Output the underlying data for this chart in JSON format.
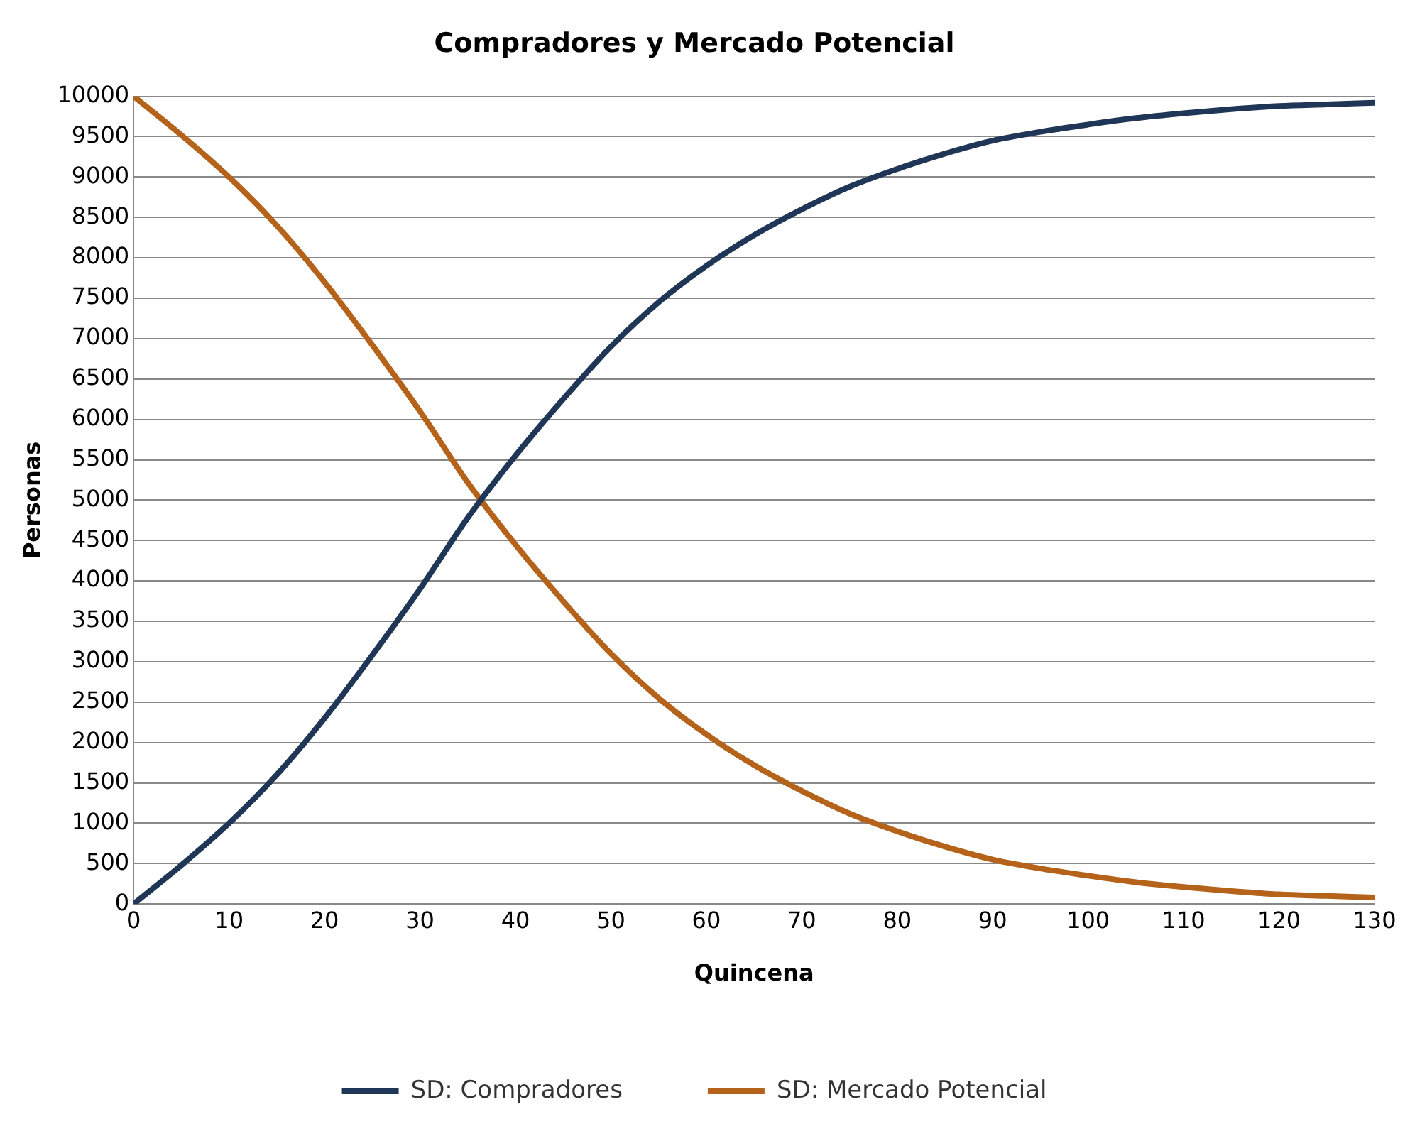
{
  "chart_data": {
    "type": "line",
    "title": "Compradores y Mercado Potencial",
    "xlabel": "Quincena",
    "ylabel": "Personas",
    "x": [
      0,
      5,
      10,
      15,
      20,
      25,
      30,
      35,
      40,
      45,
      50,
      55,
      60,
      65,
      70,
      75,
      80,
      85,
      90,
      95,
      100,
      105,
      110,
      115,
      120,
      125,
      130
    ],
    "series": [
      {
        "name": "SD: Compradores",
        "color": "#1f3657",
        "values": [
          0,
          480,
          1000,
          1600,
          2300,
          3080,
          3900,
          4780,
          5550,
          6250,
          6900,
          7450,
          7900,
          8280,
          8600,
          8880,
          9100,
          9290,
          9450,
          9560,
          9650,
          9730,
          9790,
          9840,
          9880,
          9900,
          9920
        ]
      },
      {
        "name": "SD: Mercado Potencial",
        "color": "#b5631a",
        "values": [
          10000,
          9520,
          9000,
          8400,
          7700,
          6920,
          6100,
          5220,
          4450,
          3750,
          3100,
          2550,
          2100,
          1720,
          1400,
          1120,
          900,
          710,
          550,
          440,
          350,
          270,
          210,
          160,
          120,
          100,
          80
        ]
      }
    ],
    "xlim": [
      0,
      130
    ],
    "xticks": [
      0,
      10,
      20,
      30,
      40,
      50,
      60,
      70,
      80,
      90,
      100,
      110,
      120,
      130
    ],
    "ylim": [
      0,
      10000
    ],
    "yticks": [
      0,
      500,
      1000,
      1500,
      2000,
      2500,
      3000,
      3500,
      4000,
      4500,
      5000,
      5500,
      6000,
      6500,
      7000,
      7500,
      8000,
      8500,
      9000,
      9500,
      10000
    ],
    "grid": "y",
    "legend": "bottom",
    "marker": "none",
    "line_style": "solid"
  }
}
